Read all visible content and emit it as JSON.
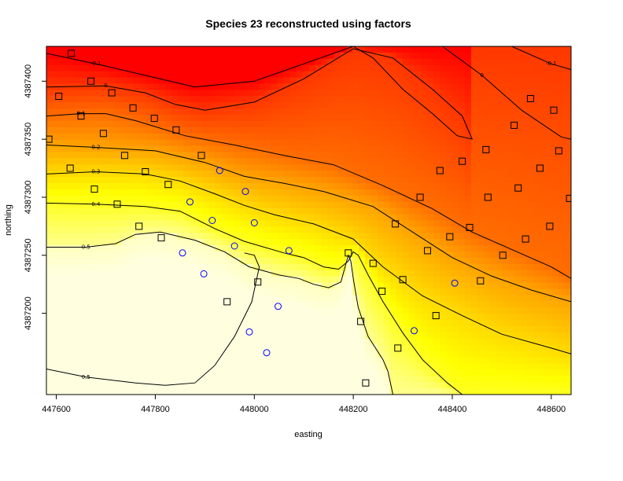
{
  "chart_data": {
    "type": "heatmap",
    "title": "Species 23 reconstructed using factors",
    "xlabel": "easting",
    "ylabel": "northing",
    "xlim": [
      447580,
      448640
    ],
    "ylim": [
      4387130,
      4387430
    ],
    "x_ticks": [
      447600,
      447800,
      448000,
      448200,
      448400,
      448600
    ],
    "y_ticks": [
      4387200,
      4387250,
      4387300,
      4387350,
      4387400
    ],
    "x_tick_labels": [
      "447600",
      "447800",
      "448000",
      "448200",
      "448400",
      "448600"
    ],
    "y_tick_labels": [
      "4387200",
      "4387250",
      "4387300",
      "4387350",
      "4387400"
    ],
    "color_scale": [
      "#ff0000",
      "#ff4000",
      "#ff8000",
      "#ffbf00",
      "#ffff00",
      "#ffff80",
      "#ffffe0"
    ],
    "contour_levels": [
      {
        "label": "-0.1",
        "points": [
          [
            447580,
            4387424
          ],
          [
            447680,
            4387415
          ],
          [
            447780,
            4387405
          ],
          [
            447880,
            4387395
          ],
          [
            448000,
            4387400
          ],
          [
            448100,
            4387415
          ],
          [
            448200,
            4387430
          ]
        ]
      },
      {
        "label": "-0.1",
        "points": [
          [
            448520,
            4387430
          ],
          [
            448600,
            4387415
          ],
          [
            448640,
            4387410
          ]
        ]
      },
      {
        "label": "0",
        "points": [
          [
            447580,
            4387395
          ],
          [
            447700,
            4387396
          ],
          [
            447780,
            4387390
          ],
          [
            447840,
            4387380
          ],
          [
            447900,
            4387375
          ],
          [
            448000,
            4387382
          ],
          [
            448100,
            4387402
          ],
          [
            448200,
            4387428
          ],
          [
            448280,
            4387420
          ],
          [
            448360,
            4387393
          ],
          [
            448420,
            4387370
          ],
          [
            448440,
            4387350
          ],
          [
            448410,
            4387353
          ],
          [
            448360,
            4387372
          ],
          [
            448300,
            4387393
          ],
          [
            448240,
            4387420
          ],
          [
            448200,
            4387430
          ]
        ]
      },
      {
        "label": "0",
        "points": [
          [
            448380,
            4387430
          ],
          [
            448460,
            4387405
          ],
          [
            448540,
            4387375
          ],
          [
            448620,
            4387352
          ],
          [
            448640,
            4387350
          ]
        ]
      },
      {
        "label": "0.1",
        "points": [
          [
            447580,
            4387370
          ],
          [
            447650,
            4387372
          ],
          [
            447700,
            4387372
          ],
          [
            447760,
            4387366
          ],
          [
            447860,
            4387353
          ],
          [
            447960,
            4387345
          ],
          [
            448060,
            4387336
          ],
          [
            448160,
            4387328
          ],
          [
            448260,
            4387310
          ],
          [
            448360,
            4387290
          ],
          [
            448440,
            4387270
          ],
          [
            448520,
            4387255
          ],
          [
            448600,
            4387240
          ],
          [
            448640,
            4387230
          ]
        ]
      },
      {
        "label": "0.2",
        "points": [
          [
            447580,
            4387345
          ],
          [
            447680,
            4387343
          ],
          [
            447800,
            4387340
          ],
          [
            447900,
            4387330
          ],
          [
            447980,
            4387318
          ],
          [
            448060,
            4387312
          ],
          [
            448140,
            4387305
          ],
          [
            448240,
            4387292
          ],
          [
            448320,
            4387270
          ],
          [
            448400,
            4387248
          ],
          [
            448480,
            4387232
          ],
          [
            448560,
            4387220
          ],
          [
            448640,
            4387210
          ]
        ]
      },
      {
        "label": "0.3",
        "points": [
          [
            447580,
            4387320
          ],
          [
            447680,
            4387322
          ],
          [
            447780,
            4387320
          ],
          [
            447850,
            4387314
          ],
          [
            447920,
            4387303
          ],
          [
            447980,
            4387293
          ],
          [
            448040,
            4387285
          ],
          [
            448120,
            4387277
          ],
          [
            448200,
            4387264
          ],
          [
            448260,
            4387240
          ],
          [
            448340,
            4387215
          ],
          [
            448420,
            4387198
          ],
          [
            448500,
            4387182
          ],
          [
            448600,
            4387170
          ],
          [
            448640,
            4387165
          ]
        ]
      },
      {
        "label": "0.4",
        "points": [
          [
            447580,
            4387295
          ],
          [
            447680,
            4387294
          ],
          [
            447780,
            4387292
          ],
          [
            447850,
            4387288
          ],
          [
            447920,
            4387273
          ],
          [
            447980,
            4387262
          ],
          [
            448060,
            4387252
          ],
          [
            448100,
            4387248
          ],
          [
            448140,
            4387240
          ],
          [
            448170,
            4387238
          ],
          [
            448190,
            4387245
          ],
          [
            448200,
            4387253
          ],
          [
            448210,
            4387250
          ],
          [
            448230,
            4387233
          ],
          [
            448260,
            4387210
          ],
          [
            448300,
            4387183
          ],
          [
            448340,
            4387160
          ],
          [
            448390,
            4387140
          ],
          [
            448420,
            4387130
          ]
        ]
      },
      {
        "label": "0.5",
        "points": [
          [
            447580,
            4387257
          ],
          [
            447660,
            4387257
          ],
          [
            447720,
            4387260
          ],
          [
            447760,
            4387268
          ],
          [
            447810,
            4387270
          ],
          [
            447880,
            4387263
          ],
          [
            447940,
            4387253
          ],
          [
            447990,
            4387240
          ],
          [
            448050,
            4387233
          ],
          [
            448090,
            4387230
          ],
          [
            448120,
            4387225
          ],
          [
            448150,
            4387222
          ],
          [
            448175,
            4387227
          ],
          [
            448190,
            4387250
          ],
          [
            448195,
            4387245
          ],
          [
            448200,
            4387230
          ],
          [
            448210,
            4387205
          ],
          [
            448230,
            4387180
          ],
          [
            448260,
            4387160
          ],
          [
            448270,
            4387150
          ],
          [
            448280,
            4387130
          ]
        ]
      },
      {
        "label": "0.5",
        "points": [
          [
            447580,
            4387152
          ],
          [
            447660,
            4387145
          ],
          [
            447760,
            4387140
          ],
          [
            447820,
            4387138
          ],
          [
            447880,
            4387140
          ],
          [
            447920,
            4387155
          ],
          [
            447960,
            4387180
          ],
          [
            447995,
            4387210
          ],
          [
            448010,
            4387240
          ],
          [
            448000,
            4387250
          ],
          [
            447980,
            4387252
          ]
        ]
      }
    ],
    "square_points": [
      [
        447630,
        4387424
      ],
      [
        447670,
        4387400
      ],
      [
        447605,
        4387387
      ],
      [
        447712,
        4387390
      ],
      [
        447755,
        4387377
      ],
      [
        447650,
        4387370
      ],
      [
        447798,
        4387368
      ],
      [
        447842,
        4387358
      ],
      [
        447585,
        4387350
      ],
      [
        447695,
        4387355
      ],
      [
        447738,
        4387336
      ],
      [
        447893,
        4387336
      ],
      [
        447628,
        4387325
      ],
      [
        447780,
        4387322
      ],
      [
        447826,
        4387311
      ],
      [
        447677,
        4387307
      ],
      [
        447723,
        4387294
      ],
      [
        447767,
        4387275
      ],
      [
        447812,
        4387265
      ],
      [
        448190,
        4387252
      ],
      [
        448007,
        4387227
      ],
      [
        447945,
        4387210
      ],
      [
        448215,
        4387193
      ],
      [
        448240,
        4387243
      ],
      [
        448258,
        4387219
      ],
      [
        448285,
        4387277
      ],
      [
        448300,
        4387229
      ],
      [
        448335,
        4387300
      ],
      [
        448350,
        4387254
      ],
      [
        448375,
        4387323
      ],
      [
        448420,
        4387331
      ],
      [
        448395,
        4387266
      ],
      [
        448435,
        4387274
      ],
      [
        448457,
        4387228
      ],
      [
        448472,
        4387300
      ],
      [
        448367,
        4387198
      ],
      [
        448290,
        4387170
      ],
      [
        448225,
        4387140
      ],
      [
        448468,
        4387341
      ],
      [
        448502,
        4387250
      ],
      [
        448525,
        4387362
      ],
      [
        448533,
        4387308
      ],
      [
        448548,
        4387264
      ],
      [
        448558,
        4387385
      ],
      [
        448577,
        4387325
      ],
      [
        448597,
        4387275
      ],
      [
        448605,
        4387375
      ],
      [
        448615,
        4387340
      ],
      [
        448637,
        4387299
      ]
    ],
    "circle_points": [
      [
        447930,
        4387323
      ],
      [
        447982,
        4387305
      ],
      [
        447870,
        4387296
      ],
      [
        447915,
        4387280
      ],
      [
        448000,
        4387278
      ],
      [
        447960,
        4387258
      ],
      [
        447855,
        4387252
      ],
      [
        448070,
        4387254
      ],
      [
        447898,
        4387234
      ],
      [
        448048,
        4387206
      ],
      [
        447990,
        4387184
      ],
      [
        448025,
        4387166
      ],
      [
        448323,
        4387185
      ],
      [
        448405,
        4387226
      ]
    ],
    "grid": true,
    "legend": "none"
  }
}
